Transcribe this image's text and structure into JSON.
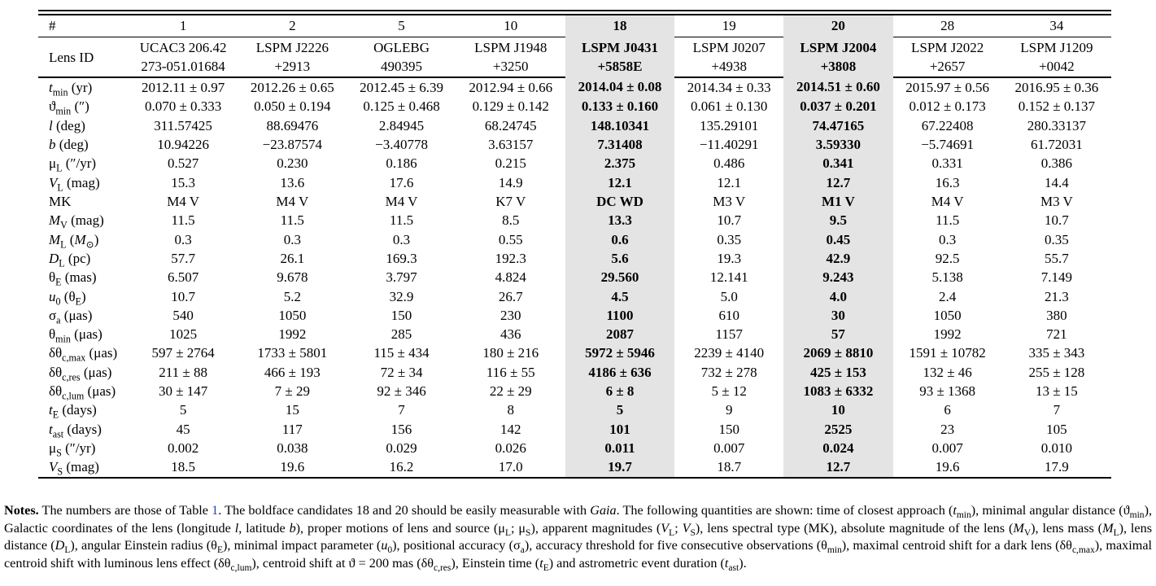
{
  "link_color": "#2540c5",
  "highlight_color": "#e4e4e4",
  "table": {
    "corner_label": "#",
    "lens_id_label": "Lens ID",
    "columns": [
      {
        "num": "1",
        "lens_id_line1": "UCAC3 206.42",
        "lens_id_line2": "273-051.01684",
        "highlight": false
      },
      {
        "num": "2",
        "lens_id_line1": "LSPM J2226",
        "lens_id_line2": "+2913",
        "highlight": false
      },
      {
        "num": "5",
        "lens_id_line1": "OGLEBG",
        "lens_id_line2": "490395",
        "highlight": false
      },
      {
        "num": "10",
        "lens_id_line1": "LSPM J1948",
        "lens_id_line2": "+3250",
        "highlight": false
      },
      {
        "num": "18",
        "lens_id_line1": "LSPM J0431",
        "lens_id_line2": "+5858E",
        "highlight": true
      },
      {
        "num": "19",
        "lens_id_line1": "LSPM J0207",
        "lens_id_line2": "+4938",
        "highlight": false
      },
      {
        "num": "20",
        "lens_id_line1": "LSPM J2004",
        "lens_id_line2": "+3808",
        "highlight": true
      },
      {
        "num": "28",
        "lens_id_line1": "LSPM J2022",
        "lens_id_line2": "+2657",
        "highlight": false
      },
      {
        "num": "34",
        "lens_id_line1": "LSPM J1209",
        "lens_id_line2": "+0042",
        "highlight": false
      }
    ],
    "rows": [
      {
        "label": "<i>t</i><sub>min</sub> (yr)",
        "values": [
          "2012.11 ± 0.97",
          "2012.26 ± 0.65",
          "2012.45 ± 6.39",
          "2012.94 ± 0.66",
          "2014.04 ± 0.08",
          "2014.34 ± 0.33",
          "2014.51 ± 0.60",
          "2015.97 ± 0.56",
          "2016.95 ± 0.36"
        ]
      },
      {
        "label": "ϑ<sub>min</sub> (″)",
        "values": [
          "0.070 ± 0.333",
          "0.050 ± 0.194",
          "0.125 ± 0.468",
          "0.129 ± 0.142",
          "0.133 ± 0.160",
          "0.061 ± 0.130",
          "0.037 ± 0.201",
          "0.012 ± 0.173",
          "0.152 ± 0.137"
        ]
      },
      {
        "label": "<i>l</i> (deg)",
        "values": [
          "311.57425",
          "88.69476",
          "2.84945",
          "68.24745",
          "148.10341",
          "135.29101",
          "74.47165",
          "67.22408",
          "280.33137"
        ]
      },
      {
        "label": "<i>b</i> (deg)",
        "values": [
          "10.94226",
          "−23.87574",
          "−3.40778",
          "3.63157",
          "7.31408",
          "−11.40291",
          "3.59330",
          "−5.74691",
          "61.72031"
        ]
      },
      {
        "label": "μ<sub>L</sub> (″/yr)",
        "values": [
          "0.527",
          "0.230",
          "0.186",
          "0.215",
          "2.375",
          "0.486",
          "0.341",
          "0.331",
          "0.386"
        ]
      },
      {
        "label": "<i>V</i><sub>L</sub> (mag)",
        "values": [
          "15.3",
          "13.6",
          "17.6",
          "14.9",
          "12.1",
          "12.1",
          "12.7",
          "16.3",
          "14.4"
        ]
      },
      {
        "label": "MK",
        "values": [
          "M4 V",
          "M4 V",
          "M4 V",
          "K7 V",
          "DC WD",
          "M3 V",
          "M1 V",
          "M4 V",
          "M3 V"
        ]
      },
      {
        "label": "<i>M</i><sub>V</sub> (mag)",
        "values": [
          "11.5",
          "11.5",
          "11.5",
          "8.5",
          "13.3",
          "10.7",
          "9.5",
          "11.5",
          "10.7"
        ]
      },
      {
        "label": "<i>M</i><sub>L</sub> (<i>M</i><sub>⊙</sub>)",
        "values": [
          "0.3",
          "0.3",
          "0.3",
          "0.55",
          "0.6",
          "0.35",
          "0.45",
          "0.3",
          "0.35"
        ]
      },
      {
        "label": "<i>D</i><sub>L</sub> (pc)",
        "values": [
          "57.7",
          "26.1",
          "169.3",
          "192.3",
          "5.6",
          "19.3",
          "42.9",
          "92.5",
          "55.7"
        ]
      },
      {
        "label": "θ<sub>E</sub> (mas)",
        "values": [
          "6.507",
          "9.678",
          "3.797",
          "4.824",
          "29.560",
          "12.141",
          "9.243",
          "5.138",
          "7.149"
        ]
      },
      {
        "label": "<i>u</i><sub>0</sub> (θ<sub>E</sub>)",
        "values": [
          "10.7",
          "5.2",
          "32.9",
          "26.7",
          "4.5",
          "5.0",
          "4.0",
          "2.4",
          "21.3"
        ]
      },
      {
        "label": "σ<sub>a</sub> (μas)",
        "values": [
          "540",
          "1050",
          "150",
          "230",
          "1100",
          "610",
          "30",
          "1050",
          "380"
        ]
      },
      {
        "label": "θ<sub>min</sub> (μas)",
        "values": [
          "1025",
          "1992",
          "285",
          "436",
          "2087",
          "1157",
          "57",
          "1992",
          "721"
        ]
      },
      {
        "label": "δθ<sub>c,max</sub> (μas)",
        "values": [
          "597 ± 2764",
          "1733 ± 5801",
          "115 ± 434",
          "180 ± 216",
          "5972 ± 5946",
          "2239 ± 4140",
          "2069 ± 8810",
          "1591 ± 10782",
          "335 ± 343"
        ]
      },
      {
        "label": "δθ<sub>c,res</sub> (μas)",
        "values": [
          "211 ± 88",
          "466 ± 193",
          "72 ± 34",
          "116 ± 55",
          "4186 ± 636",
          "732 ± 278",
          "425 ± 153",
          "132 ± 46",
          "255 ± 128"
        ]
      },
      {
        "label": "δθ<sub>c,lum</sub> (μas)",
        "values": [
          "30 ± 147",
          "7 ± 29",
          "92 ± 346",
          "22 ± 29",
          "6 ± 8",
          "5 ± 12",
          "1083 ± 6332",
          "93 ± 1368",
          "13 ± 15"
        ]
      },
      {
        "label": "<i>t</i><sub>E</sub> (days)",
        "values": [
          "5",
          "15",
          "7",
          "8",
          "5",
          "9",
          "10",
          "6",
          "7"
        ]
      },
      {
        "label": "<i>t</i><sub>ast</sub> (days)",
        "values": [
          "45",
          "117",
          "156",
          "142",
          "101",
          "150",
          "2525",
          "23",
          "105"
        ]
      },
      {
        "label": "μ<sub>S</sub> (″/yr)",
        "values": [
          "0.002",
          "0.038",
          "0.029",
          "0.026",
          "0.011",
          "0.007",
          "0.024",
          "0.007",
          "0.010"
        ]
      },
      {
        "label": "<i>V</i><sub>S</sub> (mag)",
        "values": [
          "18.5",
          "19.6",
          "16.2",
          "17.0",
          "19.7",
          "18.7",
          "12.7",
          "19.6",
          "17.9"
        ]
      }
    ]
  },
  "notes": {
    "html": "<b>Notes.</b> The numbers are those of Table <a class=\"tlink\" data-name=\"table-1-link\" data-interactable=\"true\">1</a>. The boldface candidates 18 and 20 should be easily measurable with <i>Gaia</i>. The following quantities are shown: time of closest approach (<i>t</i><sub>min</sub>), minimal angular distance (ϑ<sub>min</sub>), Galactic coordinates of the lens (longitude <i>l</i>, latitude <i>b</i>), proper motions of lens and source (μ<sub>L</sub>; μ<sub>S</sub>), apparent magnitudes (<i>V</i><sub>L</sub>; <i>V</i><sub>S</sub>), lens spectral type (MK), absolute magnitude of the lens (<i>M</i><sub>V</sub>), lens mass (<i>M</i><sub>L</sub>), lens distance (<i>D</i><sub>L</sub>), angular Einstein radius (θ<sub>E</sub>), minimal impact parameter (<i>u</i><sub>0</sub>), positional accuracy (σ<sub>a</sub>), accuracy threshold for five consecutive observations (θ<sub>min</sub>), maximal centroid shift for a dark lens (δθ<sub>c,max</sub>), maximal centroid shift with luminous lens effect (δθ<sub>c,lum</sub>), centroid shift at ϑ = 200 mas (δθ<sub>c,res</sub>), Einstein time (<i>t</i><sub>E</sub>) and astrometric event duration (<i>t</i><sub>ast</sub>)."
  }
}
